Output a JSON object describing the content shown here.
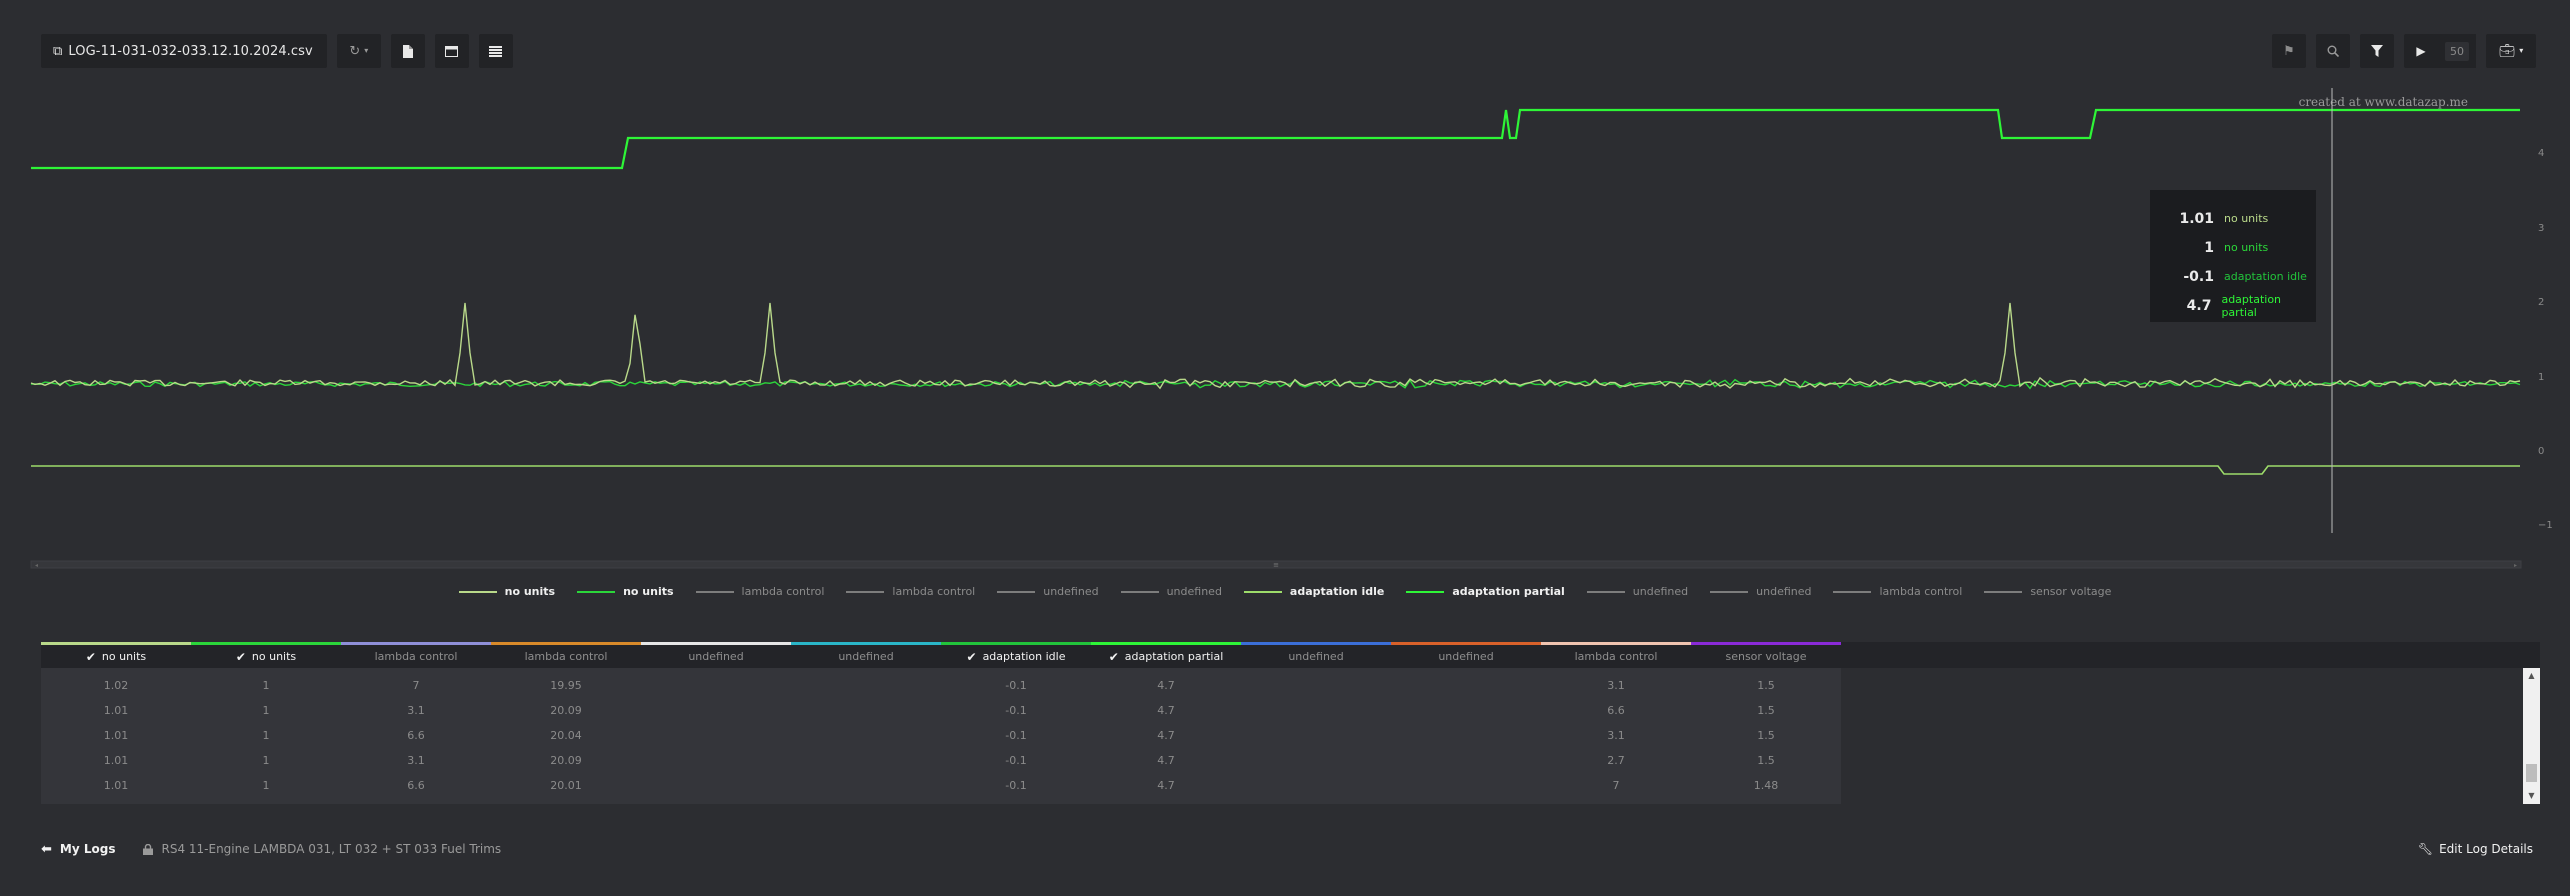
{
  "toolbar": {
    "file_name": "LOG-11-031-032-033.12.10.2024.csv",
    "speed_label": "50",
    "icons": [
      "external-link-icon",
      "refresh-icon",
      "file-icon",
      "window-icon",
      "list-icon",
      "flag-icon",
      "zoom-icon",
      "filter-icon",
      "play-icon",
      "briefcase-icon"
    ]
  },
  "chart": {
    "watermark": "created at www.datazap.me",
    "y_ticks": [
      "4",
      "3",
      "2",
      "1",
      "0",
      "−1"
    ]
  },
  "tooltip": [
    {
      "value": "1.01",
      "unit": "no units",
      "color": "#b9d98a"
    },
    {
      "value": "1",
      "unit": "no units",
      "color": "#2bd63a"
    },
    {
      "value": "-0.1",
      "unit": "adaptation idle",
      "color": "#22c43b"
    },
    {
      "value": "4.7",
      "unit": "adaptation partial",
      "color": "#2ef537"
    }
  ],
  "legend": [
    {
      "label": "no units",
      "color": "#b9d98a",
      "active": true
    },
    {
      "label": "no units",
      "color": "#2bd63a",
      "active": true
    },
    {
      "label": "lambda control",
      "color": "#7d7d7d",
      "active": false
    },
    {
      "label": "lambda control",
      "color": "#7d7d7d",
      "active": false
    },
    {
      "label": "undefined",
      "color": "#7d7d7d",
      "active": false
    },
    {
      "label": "undefined",
      "color": "#7d7d7d",
      "active": false
    },
    {
      "label": "adaptation idle",
      "color": "#9ddc6a",
      "active": true
    },
    {
      "label": "adaptation partial",
      "color": "#2ef537",
      "active": true
    },
    {
      "label": "undefined",
      "color": "#7d7d7d",
      "active": false
    },
    {
      "label": "undefined",
      "color": "#7d7d7d",
      "active": false
    },
    {
      "label": "lambda control",
      "color": "#7d7d7d",
      "active": false
    },
    {
      "label": "sensor voltage",
      "color": "#7d7d7d",
      "active": false
    }
  ],
  "table": {
    "columns": [
      {
        "label": "no units",
        "checked": true,
        "color": "#b9d98a"
      },
      {
        "label": "no units",
        "checked": true,
        "color": "#2bd63a"
      },
      {
        "label": "lambda control",
        "checked": false,
        "color": "#8f8fd8"
      },
      {
        "label": "lambda control",
        "checked": false,
        "color": "#d88a2a"
      },
      {
        "label": "undefined",
        "checked": false,
        "color": "#e6e6e6"
      },
      {
        "label": "undefined",
        "checked": false,
        "color": "#2ab6c8"
      },
      {
        "label": "adaptation idle",
        "checked": true,
        "color": "#22c43b"
      },
      {
        "label": "adaptation partial",
        "checked": true,
        "color": "#2ef537"
      },
      {
        "label": "undefined",
        "checked": false,
        "color": "#3b6fd8"
      },
      {
        "label": "undefined",
        "checked": false,
        "color": "#d8612a"
      },
      {
        "label": "lambda control",
        "checked": false,
        "color": "#f0c4b0"
      },
      {
        "label": "sensor voltage",
        "checked": false,
        "color": "#8a2ad8"
      }
    ],
    "rows": [
      [
        "1.02",
        "1",
        "7",
        "19.95",
        "",
        "",
        "-0.1",
        "4.7",
        "",
        "",
        "3.1",
        "1.5"
      ],
      [
        "1.01",
        "1",
        "3.1",
        "20.09",
        "",
        "",
        "-0.1",
        "4.7",
        "",
        "",
        "6.6",
        "1.5"
      ],
      [
        "1.01",
        "1",
        "6.6",
        "20.04",
        "",
        "",
        "-0.1",
        "4.7",
        "",
        "",
        "3.1",
        "1.5"
      ],
      [
        "1.01",
        "1",
        "3.1",
        "20.09",
        "",
        "",
        "-0.1",
        "4.7",
        "",
        "",
        "2.7",
        "1.5"
      ],
      [
        "1.01",
        "1",
        "6.6",
        "20.01",
        "",
        "",
        "-0.1",
        "4.7",
        "",
        "",
        "7",
        "1.48"
      ]
    ]
  },
  "footer": {
    "my_logs": "My Logs",
    "log_name": "RS4 11-Engine LAMBDA 031, LT 032 + ST 033 Fuel Trims",
    "edit": "Edit Log Details"
  }
}
